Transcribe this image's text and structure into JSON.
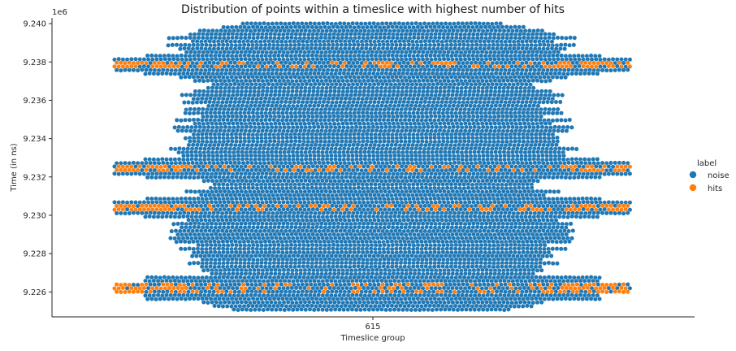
{
  "chart_data": {
    "type": "swarm",
    "title": "Distribution of points within a timeslice with highest number of hits",
    "xlabel": "Timeslice group",
    "ylabel": "Time (in ns)",
    "categories": [
      "615"
    ],
    "y_offset_label": "1e6",
    "y_ticks": [
      "9.226",
      "9.228",
      "9.230",
      "9.232",
      "9.234",
      "9.236",
      "9.238",
      "9.240"
    ],
    "y_tick_values": [
      9226000,
      9228000,
      9230000,
      9232000,
      9234000,
      9236000,
      9238000,
      9240000
    ],
    "ylim": [
      9224700,
      9240300
    ],
    "legend": {
      "title": "label",
      "placement": "right",
      "entries": [
        {
          "name": "noise",
          "color": "#1f77b4"
        },
        {
          "name": "hits",
          "color": "#ff7f0e"
        }
      ]
    },
    "series": [
      {
        "name": "noise",
        "color": "#1f77b4"
      },
      {
        "name": "hits",
        "color": "#ff7f0e"
      }
    ],
    "hit_bands_y": [
      9226200,
      9230400,
      9232500,
      9237900
    ],
    "y_range_data": [
      9225000,
      9240000
    ]
  }
}
